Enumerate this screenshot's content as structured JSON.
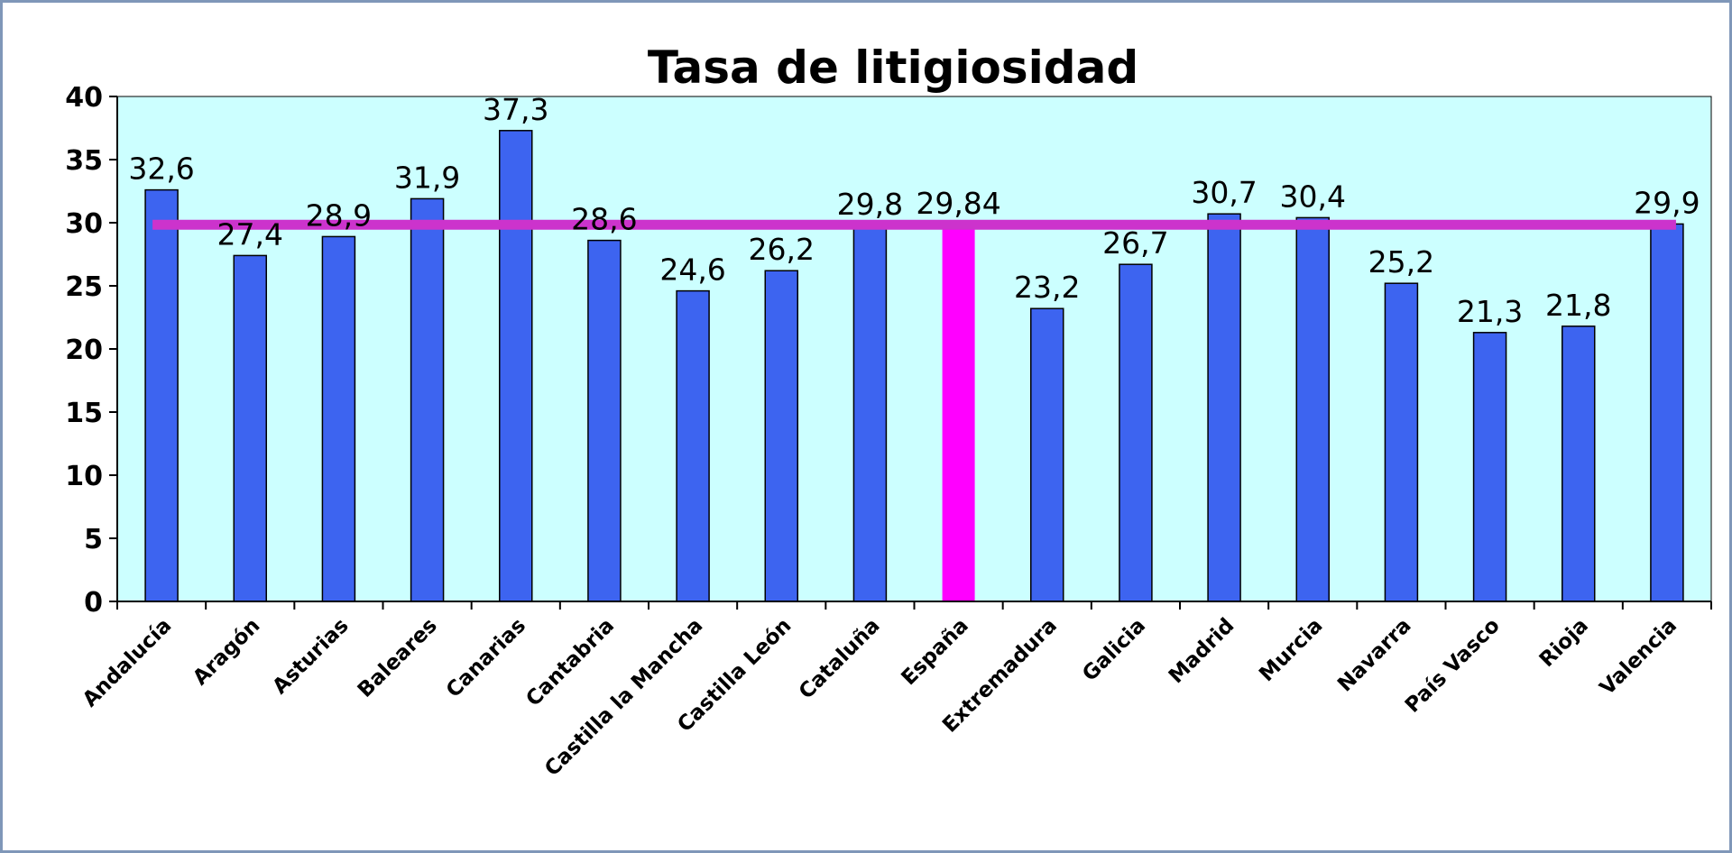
{
  "chart_data": {
    "type": "bar",
    "title": "Tasa de litigiosidad",
    "categories": [
      "Andalucía",
      "Aragón",
      "Asturias",
      "Baleares",
      "Canarias",
      "Cantabria",
      "Castilla la Mancha",
      "Castilla León",
      "Cataluña",
      "España",
      "Extremadura",
      "Galicia",
      "Madrid",
      "Murcia",
      "Navarra",
      "País Vasco",
      "Rioja",
      "Valencia"
    ],
    "values": [
      32.6,
      27.4,
      28.9,
      31.9,
      37.3,
      28.6,
      24.6,
      26.2,
      29.8,
      29.84,
      23.2,
      26.7,
      30.7,
      30.4,
      25.2,
      21.3,
      21.8,
      29.9
    ],
    "data_labels": [
      "32,6",
      "27,4",
      "28,9",
      "31,9",
      "37,3",
      "28,6",
      "24,6",
      "26,2",
      "29,8",
      "29,84",
      "23,2",
      "26,7",
      "30,7",
      "30,4",
      "25,2",
      "21,3",
      "21,8",
      "29,9"
    ],
    "highlight_category": "España",
    "reference_line": {
      "value": 29.84,
      "color": "#cc33cc"
    },
    "ylim": [
      0,
      40
    ],
    "yticks": [
      0,
      5,
      10,
      15,
      20,
      25,
      30,
      35,
      40
    ],
    "xlabel": "",
    "ylabel": "",
    "grid": false,
    "legend": "none",
    "colors": {
      "bar": "#3d64f0",
      "bar_highlight": "#ff00ff",
      "plot_background": "#ccffff",
      "reference_line": "#cc33cc",
      "frame_border": "#7f97b8"
    }
  }
}
